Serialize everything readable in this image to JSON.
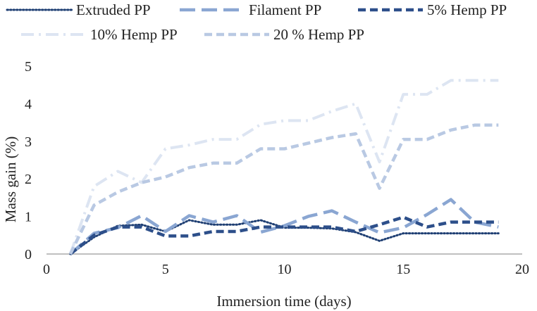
{
  "chart_data": {
    "type": "line",
    "xlabel": "Immersion time (days)",
    "ylabel": "Mass gain (%)",
    "xlim": [
      0,
      20
    ],
    "ylim": [
      0,
      5
    ],
    "xticks": [
      0,
      5,
      10,
      15,
      20
    ],
    "yticks": [
      0,
      1,
      2,
      3,
      4,
      5
    ],
    "x_tick_labels": [
      "0",
      "5",
      "10",
      "15",
      "20"
    ],
    "y_tick_labels": [
      "0",
      "1",
      "2",
      "3",
      "4",
      "5"
    ],
    "grid": false,
    "legend": "top",
    "x": [
      1,
      2,
      3,
      4,
      5,
      6,
      7,
      8,
      9,
      10,
      11,
      12,
      13,
      14,
      15,
      16,
      17,
      18,
      19
    ],
    "series": [
      {
        "name": "Extruded PP",
        "color": "#1f3f73",
        "style": "dotted",
        "values": [
          0,
          0.45,
          0.75,
          0.78,
          0.6,
          0.9,
          0.78,
          0.78,
          0.9,
          0.7,
          0.7,
          0.68,
          0.58,
          0.35,
          0.55,
          0.55,
          0.55,
          0.55,
          0.55
        ]
      },
      {
        "name": "Filament PP",
        "color": "#8aa6d2",
        "style": "long-dash",
        "values": [
          0,
          0.55,
          0.7,
          1.02,
          0.6,
          1.02,
          0.85,
          1.02,
          0.58,
          0.75,
          1.0,
          1.15,
          0.85,
          0.57,
          0.7,
          1.05,
          1.45,
          0.85,
          0.72
        ]
      },
      {
        "name": "5% Hemp PP",
        "color": "#2d4f8a",
        "style": "dash",
        "values": [
          0,
          0.5,
          0.72,
          0.72,
          0.48,
          0.48,
          0.6,
          0.6,
          0.72,
          0.72,
          0.72,
          0.72,
          0.6,
          0.78,
          0.98,
          0.72,
          0.85,
          0.85,
          0.85
        ]
      },
      {
        "name": "10% Hemp PP",
        "color": "#dde5f2",
        "style": "dash-dot",
        "values": [
          0,
          1.8,
          2.2,
          1.9,
          2.8,
          2.9,
          3.05,
          3.05,
          3.45,
          3.55,
          3.55,
          3.8,
          4.0,
          2.45,
          4.25,
          4.25,
          4.62,
          4.62,
          4.62
        ]
      },
      {
        "name": "20 % Hemp PP",
        "color": "#b9c9e3",
        "style": "dash",
        "values": [
          0,
          1.3,
          1.65,
          1.9,
          2.05,
          2.3,
          2.42,
          2.42,
          2.8,
          2.8,
          2.95,
          3.1,
          3.2,
          1.75,
          3.05,
          3.05,
          3.3,
          3.43,
          3.43
        ]
      }
    ]
  }
}
